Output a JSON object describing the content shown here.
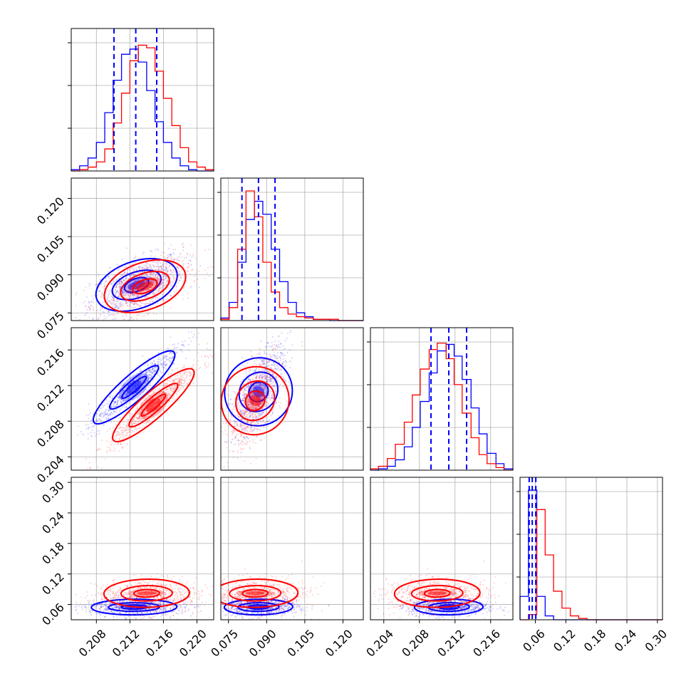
{
  "chart_data": {
    "type": "corner",
    "parameters": 4,
    "grid": true,
    "colors": {
      "series_a": "#0000ff",
      "series_b": "#ff0000",
      "quantile_lines": "#0000ff"
    },
    "series": [
      {
        "color": "#0000ff"
      },
      {
        "color": "#ff0000"
      }
    ],
    "axes": [
      {
        "index": 0,
        "range": [
          0.205,
          0.222
        ],
        "ticks": [
          0.208,
          0.212,
          0.216,
          0.22
        ],
        "tick_labels": [
          "0.208",
          "0.212",
          "0.216",
          "0.220"
        ],
        "quantiles_series_a": [
          0.2101,
          0.2127,
          0.2152
        ],
        "hist_bins": [
          0.205,
          0.206,
          0.207,
          0.208,
          0.209,
          0.21,
          0.211,
          0.212,
          0.213,
          0.214,
          0.215,
          0.216,
          0.217,
          0.218,
          0.219,
          0.22,
          0.221,
          0.222
        ],
        "hist_series_a": [
          1,
          4,
          10,
          22,
          45,
          70,
          90,
          94,
          84,
          62,
          38,
          22,
          10,
          4,
          1,
          0,
          0
        ],
        "hist_series_b": [
          0,
          1,
          3,
          7,
          17,
          37,
          60,
          85,
          97,
          95,
          77,
          56,
          35,
          18,
          7,
          3,
          1
        ]
      },
      {
        "index": 1,
        "range": [
          0.072,
          0.128
        ],
        "ticks": [
          0.075,
          0.09,
          0.105,
          0.12
        ],
        "tick_labels": [
          "0.075",
          "0.090",
          "0.105",
          "0.120"
        ],
        "quantiles_series_a": [
          0.0803,
          0.0868,
          0.0933
        ],
        "hist_bins": [
          0.072,
          0.0753,
          0.0786,
          0.0819,
          0.0852,
          0.0885,
          0.0918,
          0.0951,
          0.0984,
          0.1017,
          0.105,
          0.1083,
          0.1116,
          0.1149,
          0.1182,
          0.1215,
          0.1248,
          0.128
        ],
        "hist_series_a": [
          2,
          14,
          45,
          78,
          92,
          82,
          55,
          30,
          14,
          6,
          3,
          1,
          1,
          0,
          0,
          0,
          0
        ],
        "hist_series_b": [
          1,
          10,
          55,
          100,
          80,
          45,
          22,
          10,
          5,
          3,
          2,
          1,
          1,
          1,
          0,
          0,
          0
        ]
      },
      {
        "index": 2,
        "range": [
          0.2025,
          0.2185
        ],
        "ticks": [
          0.204,
          0.208,
          0.212,
          0.216
        ],
        "tick_labels": [
          "0.204",
          "0.208",
          "0.212",
          "0.216"
        ],
        "quantiles_series_a": [
          0.2093,
          0.2113,
          0.2133
        ],
        "hist_bins": [
          0.2025,
          0.2034,
          0.2044,
          0.2053,
          0.2063,
          0.2072,
          0.2081,
          0.2091,
          0.21,
          0.211,
          0.2119,
          0.2128,
          0.2138,
          0.2147,
          0.2156,
          0.2166,
          0.2175,
          0.2185
        ],
        "hist_series_a": [
          0,
          1,
          3,
          8,
          18,
          33,
          53,
          75,
          92,
          97,
          88,
          70,
          48,
          28,
          13,
          5,
          1
        ],
        "hist_series_b": [
          1,
          3,
          9,
          20,
          37,
          58,
          78,
          93,
          98,
          86,
          66,
          44,
          25,
          12,
          5,
          2,
          0
        ]
      },
      {
        "index": 3,
        "range": [
          0.03,
          0.31
        ],
        "ticks": [
          0.06,
          0.12,
          0.18,
          0.24,
          0.3
        ],
        "tick_labels": [
          "0.06",
          "0.12",
          "0.18",
          "0.24",
          "0.30"
        ],
        "quantiles_series_a": [
          0.048,
          0.054,
          0.061
        ],
        "hist_bins": [
          0.03,
          0.0465,
          0.0629,
          0.0794,
          0.0959,
          0.1124,
          0.1288,
          0.1453,
          0.1618,
          0.1782,
          0.1947,
          0.2112,
          0.2276,
          0.2441,
          0.2606,
          0.2771,
          0.2935,
          0.31
        ],
        "hist_series_a": [
          18,
          100,
          18,
          3,
          0,
          0,
          0,
          0,
          0,
          0,
          0,
          0,
          0,
          0,
          0,
          0,
          0
        ],
        "hist_series_b": [
          0,
          4,
          85,
          50,
          22,
          9,
          3,
          1,
          0,
          0,
          0,
          0,
          0,
          0,
          0,
          0,
          0
        ]
      }
    ],
    "pairs": [
      {
        "x": 0,
        "y": 1,
        "series_a": {
          "center": [
            0.2128,
            0.086
          ]
        },
        "series_b": {
          "center": [
            0.2138,
            0.0855
          ]
        }
      },
      {
        "x": 0,
        "y": 2,
        "series_a": {
          "center": [
            0.2125,
            0.2118
          ]
        },
        "series_b": {
          "center": [
            0.2148,
            0.2098
          ]
        }
      },
      {
        "x": 1,
        "y": 2,
        "series_a": {
          "center": [
            0.0868,
            0.2113
          ]
        },
        "series_b": {
          "center": [
            0.0855,
            0.2103
          ]
        }
      },
      {
        "x": 0,
        "y": 3,
        "series_a": {
          "center": [
            0.2125,
            0.055
          ]
        },
        "series_b": {
          "center": [
            0.214,
            0.082
          ]
        }
      },
      {
        "x": 1,
        "y": 3,
        "series_a": {
          "center": [
            0.0868,
            0.055
          ]
        },
        "series_b": {
          "center": [
            0.0855,
            0.082
          ]
        }
      },
      {
        "x": 2,
        "y": 3,
        "series_a": {
          "center": [
            0.2113,
            0.055
          ]
        },
        "series_b": {
          "center": [
            0.21,
            0.082
          ]
        }
      }
    ]
  }
}
